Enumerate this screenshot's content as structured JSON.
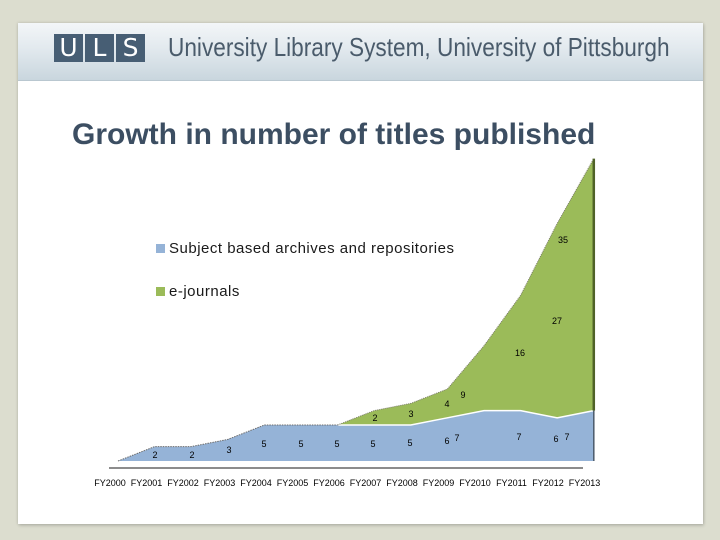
{
  "header": {
    "logo_letters": [
      "U",
      "L",
      "S"
    ],
    "org_name": "University Library System, University of Pittsburgh"
  },
  "slide": {
    "title": "Growth in number of titles published"
  },
  "legend": [
    {
      "label": "Subject based archives and repositories",
      "color": "#95b3d7"
    },
    {
      "label": "e-journals",
      "color": "#9bbb59"
    }
  ],
  "chart_data": {
    "type": "area",
    "stacked": true,
    "title": "Growth in number of titles published",
    "xlabel": "",
    "ylabel": "",
    "grid": false,
    "legend_position": "upper-left-inside",
    "categories": [
      "FY2000",
      "FY2001",
      "FY2002",
      "FY2003",
      "FY2004",
      "FY2005",
      "FY2006",
      "FY2007",
      "FY2008",
      "FY2009",
      "FY2010",
      "FY2011",
      "FY2012",
      "FY2013"
    ],
    "series": [
      {
        "name": "Subject based archives and repositories",
        "color": "#95b3d7",
        "values": [
          0,
          2,
          2,
          3,
          5,
          5,
          5,
          5,
          5,
          6,
          7,
          7,
          6,
          7
        ]
      },
      {
        "name": "e-journals",
        "color": "#9bbb59",
        "values": [
          null,
          null,
          null,
          null,
          null,
          null,
          0,
          2,
          3,
          4,
          9,
          16,
          27,
          35
        ]
      }
    ]
  }
}
